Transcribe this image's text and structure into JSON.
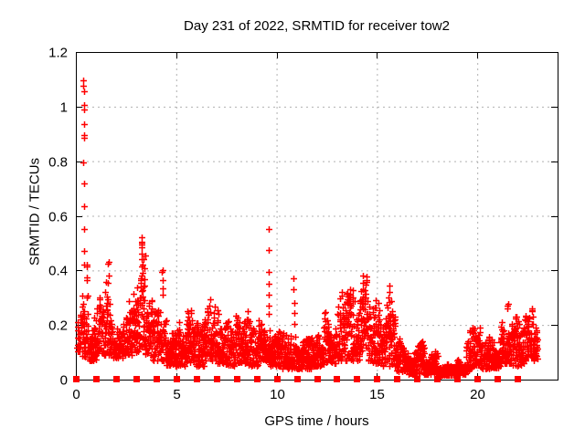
{
  "colors": {
    "data_red": "#ff0000",
    "grid_gray": "#b0b0b0",
    "frame_black": "#000000",
    "background": "#ffffff",
    "text": "#000000"
  },
  "chart_data": {
    "type": "scatter",
    "title": "Day 231 of 2022, SRMTID for receiver tow2",
    "xlabel": "GPS time / hours",
    "ylabel": "SRMTID / TECUs",
    "xlim": [
      0,
      24
    ],
    "ylim": [
      0,
      1.2
    ],
    "grid": true,
    "legend": "none",
    "xticks": {
      "values": [
        0,
        5,
        10,
        15,
        20
      ],
      "labels": [
        "0",
        "5",
        "10",
        "15",
        "20"
      ]
    },
    "yticks": {
      "values": [
        0,
        0.2,
        0.4,
        0.6,
        0.8,
        1,
        1.2
      ],
      "labels": [
        "0",
        "0.2",
        "0.4",
        "0.6",
        "0.8",
        "1",
        "1.2"
      ]
    },
    "series": [
      {
        "name": "SRMTID",
        "marker": "plus",
        "color": "#ff0000",
        "band_profile_fields": [
          "hour_start",
          "hour_end",
          "y_min",
          "y_max",
          "density"
        ],
        "band_profile": [
          [
            0.05,
            0.3,
            0.1,
            0.3,
            0.8
          ],
          [
            0.3,
            0.6,
            0.08,
            0.42,
            1.0
          ],
          [
            0.6,
            1.0,
            0.07,
            0.26,
            1.0
          ],
          [
            1.0,
            1.45,
            0.09,
            0.3,
            1.0
          ],
          [
            1.45,
            1.8,
            0.09,
            0.4,
            1.0
          ],
          [
            1.8,
            2.35,
            0.08,
            0.26,
            1.0
          ],
          [
            2.35,
            2.85,
            0.09,
            0.3,
            1.0
          ],
          [
            2.85,
            3.15,
            0.1,
            0.38,
            1.0
          ],
          [
            3.15,
            3.45,
            0.12,
            0.5,
            1.0
          ],
          [
            3.45,
            3.8,
            0.09,
            0.32,
            1.0
          ],
          [
            3.8,
            4.15,
            0.07,
            0.26,
            1.0
          ],
          [
            4.15,
            4.5,
            0.07,
            0.37,
            1.0
          ],
          [
            4.5,
            5.05,
            0.05,
            0.17,
            1.0
          ],
          [
            5.05,
            5.45,
            0.05,
            0.22,
            1.0
          ],
          [
            5.45,
            5.85,
            0.06,
            0.3,
            1.0
          ],
          [
            5.85,
            6.45,
            0.05,
            0.22,
            1.0
          ],
          [
            6.45,
            6.95,
            0.07,
            0.3,
            1.0
          ],
          [
            6.95,
            7.45,
            0.06,
            0.27,
            1.0
          ],
          [
            7.45,
            7.95,
            0.05,
            0.24,
            1.0
          ],
          [
            7.95,
            8.45,
            0.06,
            0.32,
            1.0
          ],
          [
            8.45,
            9.05,
            0.05,
            0.27,
            1.0
          ],
          [
            9.05,
            9.65,
            0.07,
            0.24,
            1.0
          ],
          [
            9.65,
            10.25,
            0.05,
            0.21,
            1.0
          ],
          [
            10.25,
            10.95,
            0.04,
            0.17,
            1.0
          ],
          [
            10.95,
            11.75,
            0.04,
            0.15,
            1.0
          ],
          [
            11.75,
            12.35,
            0.05,
            0.2,
            1.0
          ],
          [
            12.35,
            12.95,
            0.06,
            0.29,
            1.0
          ],
          [
            12.95,
            13.55,
            0.07,
            0.34,
            1.0
          ],
          [
            13.55,
            14.15,
            0.07,
            0.33,
            1.0
          ],
          [
            14.15,
            14.55,
            0.09,
            0.38,
            1.0
          ],
          [
            14.55,
            15.25,
            0.06,
            0.29,
            1.0
          ],
          [
            15.25,
            15.95,
            0.05,
            0.33,
            1.0
          ],
          [
            15.95,
            16.55,
            0.03,
            0.15,
            1.0
          ],
          [
            16.55,
            17.35,
            0.02,
            0.14,
            1.0
          ],
          [
            17.35,
            18.05,
            0.02,
            0.11,
            1.0
          ],
          [
            18.05,
            18.95,
            0.015,
            0.08,
            1.1
          ],
          [
            18.95,
            19.45,
            0.02,
            0.08,
            1.0
          ],
          [
            19.45,
            19.75,
            0.03,
            0.2,
            1.0
          ],
          [
            19.75,
            20.15,
            0.05,
            0.28,
            1.0
          ],
          [
            20.15,
            20.45,
            0.04,
            0.2,
            0.7
          ],
          [
            20.45,
            21.15,
            0.04,
            0.17,
            1.0
          ],
          [
            21.15,
            21.75,
            0.06,
            0.28,
            1.0
          ],
          [
            21.75,
            22.35,
            0.05,
            0.24,
            1.0
          ],
          [
            22.35,
            23.0,
            0.07,
            0.26,
            1.0
          ]
        ],
        "spike_columns": [
          {
            "hour": 0.4,
            "values": [
              1.095,
              1.075,
              1.055,
              1.005,
              0.99,
              0.935,
              0.895,
              0.885,
              0.795,
              0.72,
              0.635,
              0.55,
              0.47,
              0.42
            ]
          },
          {
            "hour": 1.62,
            "values": [
              0.43,
              0.425,
              0.38,
              0.355
            ]
          },
          {
            "hour": 3.28,
            "values": [
              0.52,
              0.505,
              0.5,
              0.495,
              0.485,
              0.46,
              0.44,
              0.415,
              0.39,
              0.365
            ]
          },
          {
            "hour": 4.32,
            "values": [
              0.4,
              0.395,
              0.365,
              0.335,
              0.31
            ]
          },
          {
            "hour": 9.63,
            "values": [
              0.55,
              0.475,
              0.395,
              0.35,
              0.31,
              0.27,
              0.24
            ]
          },
          {
            "hour": 10.85,
            "values": [
              0.37,
              0.33,
              0.28,
              0.245,
              0.205
            ]
          },
          {
            "hour": 14.32,
            "values": [
              0.38,
              0.355,
              0.33,
              0.305
            ]
          },
          {
            "hour": 15.62,
            "values": [
              0.345,
              0.32,
              0.3
            ]
          },
          {
            "hour": 21.5,
            "values": [
              0.277,
              0.27,
              0.26
            ]
          }
        ]
      },
      {
        "name": "hourly-zero-markers",
        "marker": "filled-square",
        "color": "#ff0000",
        "y": 0,
        "hours": [
          0,
          1,
          2,
          3,
          4,
          5,
          6,
          7,
          8,
          9,
          10,
          11,
          12,
          13,
          14,
          15,
          16,
          17,
          18,
          19,
          20,
          21,
          22
        ]
      }
    ]
  }
}
